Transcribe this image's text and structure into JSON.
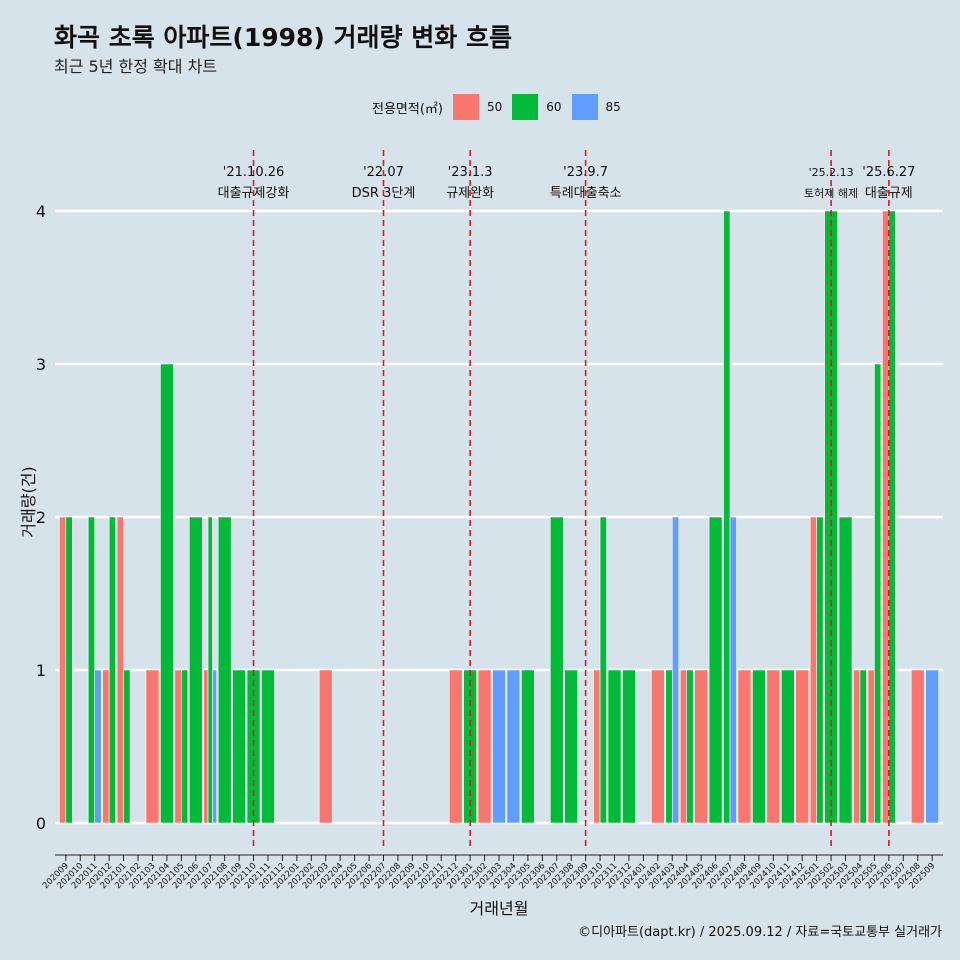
{
  "header": {
    "title": "화곡 초록 아파트(1998) 거래량 변화 흐름",
    "subtitle": "최근 5년 한정 확대 차트"
  },
  "legend": {
    "title": "전용면적(㎡)",
    "items": [
      {
        "label": "50",
        "color": "#F8766D"
      },
      {
        "label": "60",
        "color": "#00BA38"
      },
      {
        "label": "85",
        "color": "#619CFF"
      }
    ]
  },
  "caption": "©디아파트(dapt.kr) / 2025.09.12 / 자료=국토교통부 실거래가",
  "chart_data": {
    "type": "bar",
    "stacking": "dodge",
    "xlabel": "거래년월",
    "ylabel": "거래량(건)",
    "ylim": [
      0,
      4
    ],
    "yticks": [
      0,
      1,
      2,
      3,
      4
    ],
    "categories": [
      "202009",
      "202010",
      "202011",
      "202012",
      "202101",
      "202102",
      "202103",
      "202104",
      "202105",
      "202106",
      "202107",
      "202108",
      "202109",
      "202110",
      "202111",
      "202112",
      "202201",
      "202202",
      "202203",
      "202204",
      "202205",
      "202206",
      "202207",
      "202208",
      "202209",
      "202210",
      "202211",
      "202212",
      "202301",
      "202302",
      "202303",
      "202304",
      "202305",
      "202306",
      "202307",
      "202308",
      "202309",
      "202310",
      "202311",
      "202312",
      "202401",
      "202402",
      "202403",
      "202404",
      "202405",
      "202406",
      "202407",
      "202408",
      "202409",
      "202410",
      "202411",
      "202412",
      "202501",
      "202502",
      "202503",
      "202504",
      "202505",
      "202506",
      "202507",
      "202508",
      "202509"
    ],
    "series": [
      {
        "name": "50",
        "color": "#F8766D",
        "values": [
          2,
          0,
          0,
          1,
          2,
          0,
          1,
          0,
          1,
          0,
          1,
          0,
          0,
          0,
          0,
          0,
          0,
          0,
          1,
          0,
          0,
          0,
          0,
          0,
          0,
          0,
          0,
          1,
          0,
          1,
          0,
          0,
          0,
          0,
          0,
          0,
          0,
          1,
          0,
          0,
          0,
          1,
          0,
          1,
          1,
          0,
          0,
          1,
          0,
          1,
          0,
          1,
          2,
          0,
          0,
          1,
          1,
          4,
          0,
          1,
          0
        ]
      },
      {
        "name": "60",
        "color": "#00BA38",
        "values": [
          2,
          0,
          2,
          2,
          1,
          0,
          0,
          3,
          1,
          2,
          2,
          2,
          1,
          1,
          1,
          0,
          0,
          0,
          0,
          0,
          0,
          0,
          0,
          0,
          0,
          0,
          0,
          0,
          1,
          0,
          0,
          0,
          1,
          0,
          2,
          1,
          0,
          2,
          1,
          1,
          0,
          0,
          1,
          1,
          0,
          2,
          4,
          0,
          1,
          0,
          1,
          0,
          2,
          4,
          2,
          1,
          3,
          4,
          0,
          0,
          0
        ]
      },
      {
        "name": "85",
        "color": "#619CFF",
        "values": [
          0,
          0,
          1,
          0,
          0,
          0,
          0,
          0,
          0,
          0,
          1,
          0,
          0,
          0,
          0,
          0,
          0,
          0,
          0,
          0,
          0,
          0,
          0,
          0,
          0,
          0,
          0,
          0,
          0,
          0,
          1,
          1,
          0,
          0,
          0,
          0,
          0,
          0,
          0,
          0,
          0,
          0,
          2,
          0,
          0,
          0,
          2,
          0,
          0,
          0,
          0,
          0,
          0,
          0,
          0,
          0,
          0,
          0,
          0,
          0,
          1
        ]
      }
    ],
    "annotations": [
      {
        "at": "202110",
        "date": "'21.10.26",
        "text": "대출규제강화"
      },
      {
        "at": "202207",
        "date": "'22.07",
        "text": "DSR 3단계"
      },
      {
        "at": "202301",
        "date": "'23.1.3",
        "text": "규제완화"
      },
      {
        "at": "202309",
        "date": "'23.9.7",
        "text": "특례대출축소"
      },
      {
        "at": "202502",
        "date": "'25.2.13",
        "text": "토허제 해제"
      },
      {
        "at": "202506",
        "date": "'25.6.27",
        "text": "대출규제"
      }
    ]
  }
}
